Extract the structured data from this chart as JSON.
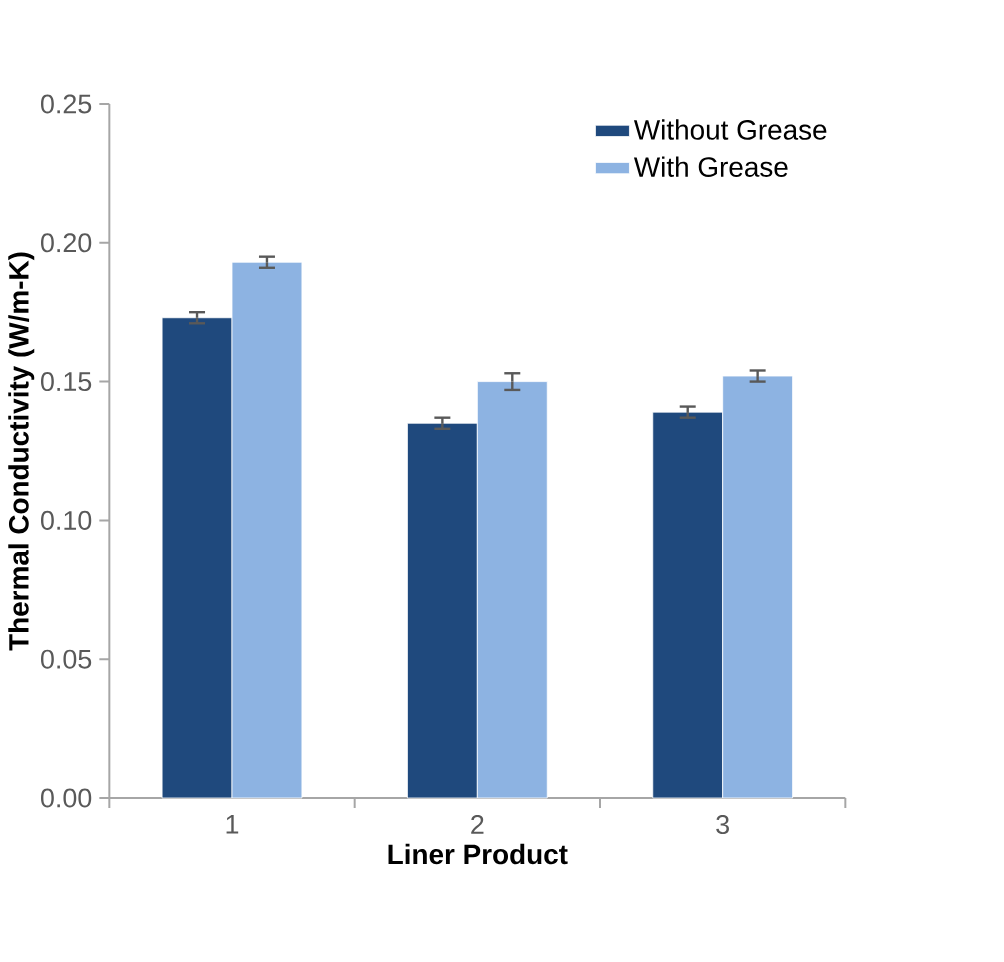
{
  "chart_data": {
    "type": "bar",
    "xlabel": "Liner Product",
    "ylabel": "Thermal Conductivity (W/m-K)",
    "categories": [
      "1",
      "2",
      "3"
    ],
    "series": [
      {
        "name": "Without Grease",
        "color": "#1f497d",
        "values": [
          0.173,
          0.135,
          0.139
        ],
        "errors": [
          0.002,
          0.002,
          0.002
        ]
      },
      {
        "name": "With Grease",
        "color": "#8db3e2",
        "values": [
          0.193,
          0.15,
          0.152
        ],
        "errors": [
          0.002,
          0.003,
          0.002
        ]
      }
    ],
    "ylim": [
      0,
      0.25
    ],
    "yticks": [
      {
        "value": 0,
        "label": "0.00"
      },
      {
        "value": 0.05,
        "label": "0.05"
      },
      {
        "value": 0.1,
        "label": "0.10"
      },
      {
        "value": 0.15,
        "label": "0.15"
      },
      {
        "value": 0.2,
        "label": "0.20"
      },
      {
        "value": 0.25,
        "label": "0.25"
      }
    ],
    "grid": false,
    "legend": "top right"
  }
}
